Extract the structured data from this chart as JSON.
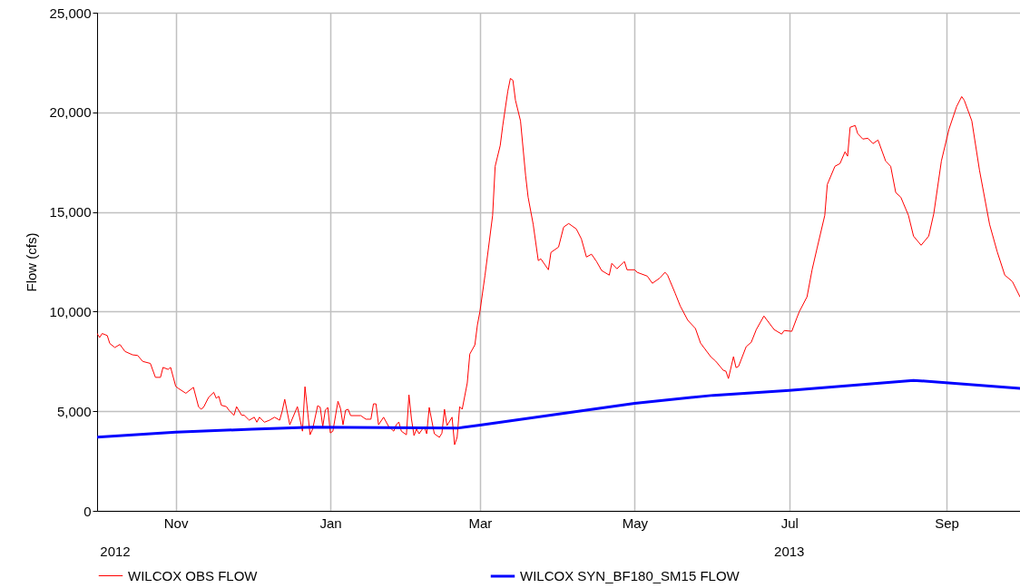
{
  "chart_data": {
    "type": "line",
    "ylabel": "Flow (cfs)",
    "xlim": [
      "2012-10-01",
      "2013-09-30"
    ],
    "xticks": [
      {
        "value": "2012-11-01",
        "label": "Nov"
      },
      {
        "value": "2013-01-01",
        "label": "Jan"
      },
      {
        "value": "2013-03-01",
        "label": "Mar"
      },
      {
        "value": "2013-05-01",
        "label": "May"
      },
      {
        "value": "2013-07-01",
        "label": "Jul"
      },
      {
        "value": "2013-09-01",
        "label": "Sep"
      }
    ],
    "ylim": [
      0,
      25000
    ],
    "yticks": [
      0,
      {
        "value": 5000,
        "label": "5,000"
      },
      {
        "value": 10000,
        "label": "10,000"
      },
      {
        "value": 15000,
        "label": "15,000"
      },
      {
        "value": 20000,
        "label": "20,000"
      },
      {
        "value": 25000,
        "label": "25,000"
      }
    ],
    "grid": true,
    "legend": "bottom",
    "annotations": [
      "2012",
      "2013"
    ],
    "series": [
      {
        "name": "WILCOX OBS FLOW",
        "color": "#ff0000",
        "x": [
          "2012-10-01",
          "2012-10-02",
          "2012-10-03",
          "2012-10-05",
          "2012-10-06",
          "2012-10-08",
          "2012-10-10",
          "2012-10-12",
          "2012-10-15",
          "2012-10-17",
          "2012-10-19",
          "2012-10-22",
          "2012-10-24",
          "2012-10-26",
          "2012-10-27",
          "2012-10-29",
          "2012-10-30",
          "2012-11-01",
          "2012-11-02",
          "2012-11-05",
          "2012-11-08",
          "2012-11-10",
          "2012-11-11",
          "2012-11-12",
          "2012-11-14",
          "2012-11-16",
          "2012-11-17",
          "2012-11-18",
          "2012-11-19",
          "2012-11-21",
          "2012-11-22",
          "2012-11-24",
          "2012-11-25",
          "2012-11-27",
          "2012-11-28",
          "2012-11-30",
          "2012-12-02",
          "2012-12-03",
          "2012-12-04",
          "2012-12-06",
          "2012-12-08",
          "2012-12-10",
          "2012-12-12",
          "2012-12-13",
          "2012-12-14",
          "2012-12-16",
          "2012-12-19",
          "2012-12-21",
          "2012-12-22",
          "2012-12-24",
          "2012-12-25",
          "2012-12-27",
          "2012-12-28",
          "2012-12-29",
          "2012-12-30",
          "2012-12-31",
          "2013-01-01",
          "2013-01-02",
          "2013-01-04",
          "2013-01-05",
          "2013-01-06",
          "2013-01-07",
          "2013-01-08",
          "2013-01-09",
          "2013-01-13",
          "2013-01-15",
          "2013-01-17",
          "2013-01-18",
          "2013-01-19",
          "2013-01-20",
          "2013-01-22",
          "2013-01-24",
          "2013-01-26",
          "2013-01-27",
          "2013-01-28",
          "2013-01-29",
          "2013-01-31",
          "2013-02-01",
          "2013-02-02",
          "2013-02-03",
          "2013-02-04",
          "2013-02-05",
          "2013-02-07",
          "2013-02-08",
          "2013-02-09",
          "2013-02-11",
          "2013-02-13",
          "2013-02-14",
          "2013-02-15",
          "2013-02-16",
          "2013-02-18",
          "2013-02-19",
          "2013-02-20",
          "2013-02-21",
          "2013-02-22",
          "2013-02-24",
          "2013-02-25",
          "2013-02-27",
          "2013-02-28",
          "2013-03-01",
          "2013-03-03",
          "2013-03-06",
          "2013-03-07",
          "2013-03-09",
          "2013-03-10",
          "2013-03-12",
          "2013-03-13",
          "2013-03-14",
          "2013-03-15",
          "2013-03-17",
          "2013-03-19",
          "2013-03-20",
          "2013-03-22",
          "2013-03-24",
          "2013-03-25",
          "2013-03-28",
          "2013-03-29",
          "2013-04-01",
          "2013-04-03",
          "2013-04-05",
          "2013-04-08",
          "2013-04-10",
          "2013-04-12",
          "2013-04-14",
          "2013-04-16",
          "2013-04-18",
          "2013-04-21",
          "2013-04-22",
          "2013-04-24",
          "2013-04-27",
          "2013-04-28",
          "2013-05-01",
          "2013-05-02",
          "2013-05-06",
          "2013-05-08",
          "2013-05-11",
          "2013-05-13",
          "2013-05-14",
          "2013-05-17",
          "2013-05-19",
          "2013-05-22",
          "2013-05-25",
          "2013-05-27",
          "2013-05-31",
          "2013-06-02",
          "2013-06-05",
          "2013-06-06",
          "2013-06-07",
          "2013-06-09",
          "2013-06-10",
          "2013-06-11",
          "2013-06-14",
          "2013-06-16",
          "2013-06-18",
          "2013-06-21",
          "2013-06-25",
          "2013-06-28",
          "2013-06-29",
          "2013-07-02",
          "2013-07-04",
          "2013-07-05",
          "2013-07-08",
          "2013-07-10",
          "2013-07-12",
          "2013-07-15",
          "2013-07-16",
          "2013-07-19",
          "2013-07-21",
          "2013-07-23",
          "2013-07-24",
          "2013-07-25",
          "2013-07-27",
          "2013-07-28",
          "2013-07-30",
          "2013-08-01",
          "2013-08-03",
          "2013-08-05",
          "2013-08-08",
          "2013-08-10",
          "2013-08-12",
          "2013-08-14",
          "2013-08-17",
          "2013-08-19",
          "2013-08-22",
          "2013-08-25",
          "2013-08-27",
          "2013-08-30",
          "2013-09-02",
          "2013-09-05",
          "2013-09-07",
          "2013-09-08",
          "2013-09-11",
          "2013-09-14",
          "2013-09-18",
          "2013-09-21",
          "2013-09-24",
          "2013-09-27",
          "2013-09-30"
        ],
        "values": [
          8900,
          8700,
          8900,
          8800,
          8400,
          8200,
          8350,
          8000,
          7830,
          7800,
          7500,
          7400,
          6700,
          6700,
          7200,
          7100,
          7200,
          6250,
          6150,
          5900,
          6200,
          5230,
          5100,
          5200,
          5700,
          5950,
          5650,
          5750,
          5300,
          5230,
          5050,
          4800,
          5230,
          4800,
          4800,
          4550,
          4700,
          4450,
          4700,
          4450,
          4550,
          4700,
          4550,
          5000,
          5600,
          4320,
          5230,
          4000,
          6230,
          3820,
          4100,
          5280,
          5200,
          4230,
          5050,
          5190,
          3910,
          4000,
          5500,
          5140,
          4320,
          5050,
          5100,
          4780,
          4780,
          4600,
          4600,
          5370,
          5370,
          4320,
          4700,
          4230,
          4000,
          4320,
          4460,
          4000,
          3820,
          5820,
          4600,
          3780,
          4100,
          3870,
          4230,
          3870,
          5190,
          3870,
          3690,
          3900,
          5100,
          4280,
          4700,
          3320,
          3690,
          5230,
          5100,
          6420,
          7870,
          8330,
          9330,
          10010,
          11830,
          14830,
          17290,
          18340,
          19340,
          21070,
          21700,
          21610,
          20610,
          19570,
          16840,
          15740,
          14380,
          12560,
          12650,
          12100,
          12970,
          13240,
          14240,
          14420,
          14150,
          13650,
          12740,
          12880,
          12510,
          12060,
          11830,
          12420,
          12150,
          12510,
          12100,
          12100,
          11970,
          11780,
          11420,
          11690,
          11970,
          11830,
          10920,
          10280,
          9560,
          9150,
          8420,
          7740,
          7510,
          7050,
          7010,
          6640,
          7740,
          7190,
          7250,
          8240,
          8460,
          9100,
          9780,
          9100,
          8870,
          9050,
          9010,
          9690,
          10010,
          10740,
          12100,
          13200,
          14830,
          16380,
          17290,
          17430,
          18020,
          17800,
          19250,
          19340,
          18930,
          18660,
          18700,
          18430,
          18610,
          17560,
          17290,
          15970,
          15740,
          14830,
          13790,
          13330,
          13790,
          14920,
          17560,
          19160,
          20290,
          20790,
          20610,
          19570,
          17110,
          14380,
          13010,
          11830,
          11510,
          10740
        ]
      },
      {
        "name": "WILCOX SYN_BF180_SM15 FLOW",
        "color": "#0000ff",
        "x": [
          "2012-10-01",
          "2012-11-01",
          "2012-12-01",
          "2012-12-25",
          "2013-02-20",
          "2013-03-01",
          "2013-05-01",
          "2013-06-01",
          "2013-07-01",
          "2013-08-19",
          "2013-09-30"
        ],
        "values": [
          3700,
          3950,
          4100,
          4200,
          4150,
          4300,
          5400,
          5800,
          6050,
          6550,
          6150
        ]
      }
    ]
  }
}
